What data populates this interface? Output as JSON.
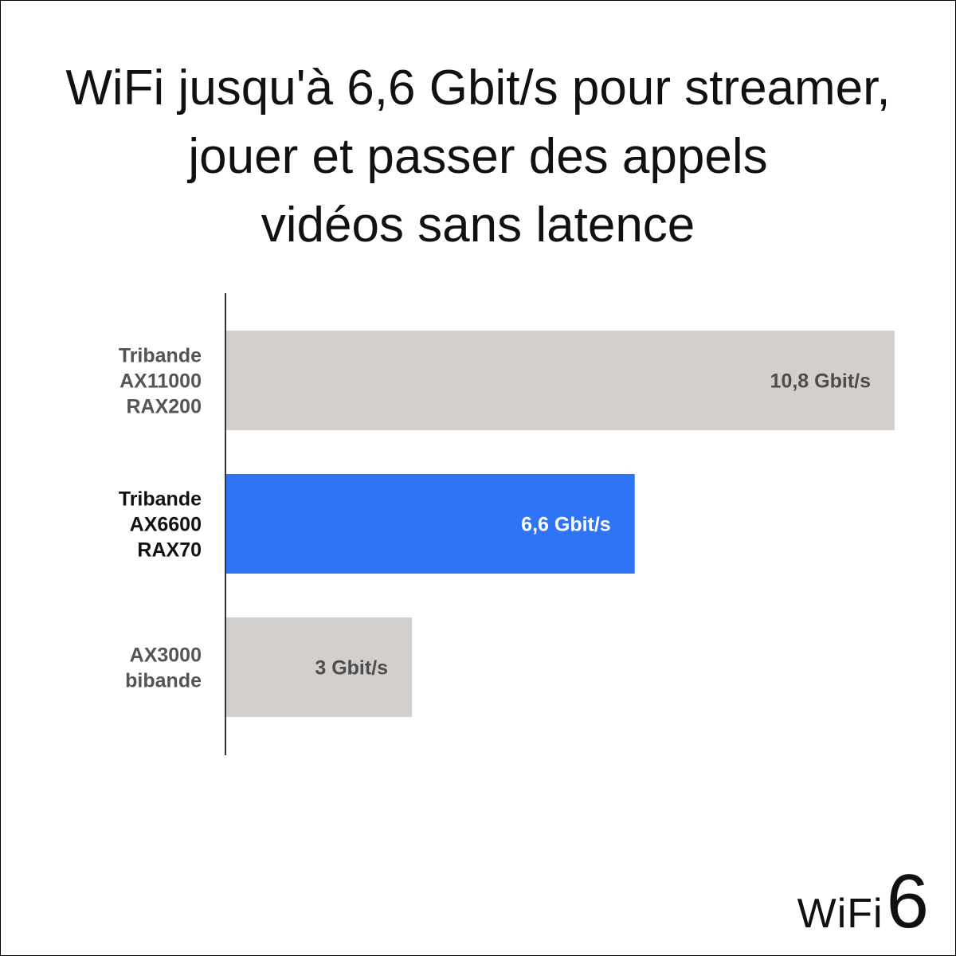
{
  "title_lines": [
    "WiFi jusqu'à 6,6 Gbit/s pour streamer,",
    "jouer et passer des appels",
    "vidéos sans latence"
  ],
  "chart_data": {
    "type": "bar",
    "orientation": "horizontal",
    "title": "WiFi jusqu'à 6,6 Gbit/s pour streamer, jouer et passer des appels vidéos sans latence",
    "xlabel": "",
    "ylabel": "",
    "xlim": [
      0,
      10.8
    ],
    "grid": false,
    "unit": "Gbit/s",
    "categories": [
      [
        "Tribande",
        "AX11000",
        "RAX200"
      ],
      [
        "Tribande",
        "AX6600",
        "RAX70"
      ],
      [
        "AX3000",
        "bibande"
      ]
    ],
    "values": [
      10.8,
      6.6,
      3
    ],
    "value_labels": [
      "10,8 Gbit/s",
      "6,6 Gbit/s",
      "3 Gbit/s"
    ],
    "bar_colors": [
      "#d3cfcd",
      "#2f73f7",
      "#d3cfcd"
    ],
    "value_label_colors": [
      "#4d4d4d",
      "#ffffff",
      "#4d4d4d"
    ],
    "category_label_colors": [
      "#555555",
      "#111111",
      "#555555"
    ]
  },
  "logo": {
    "word": "WiFi",
    "number": "6"
  }
}
